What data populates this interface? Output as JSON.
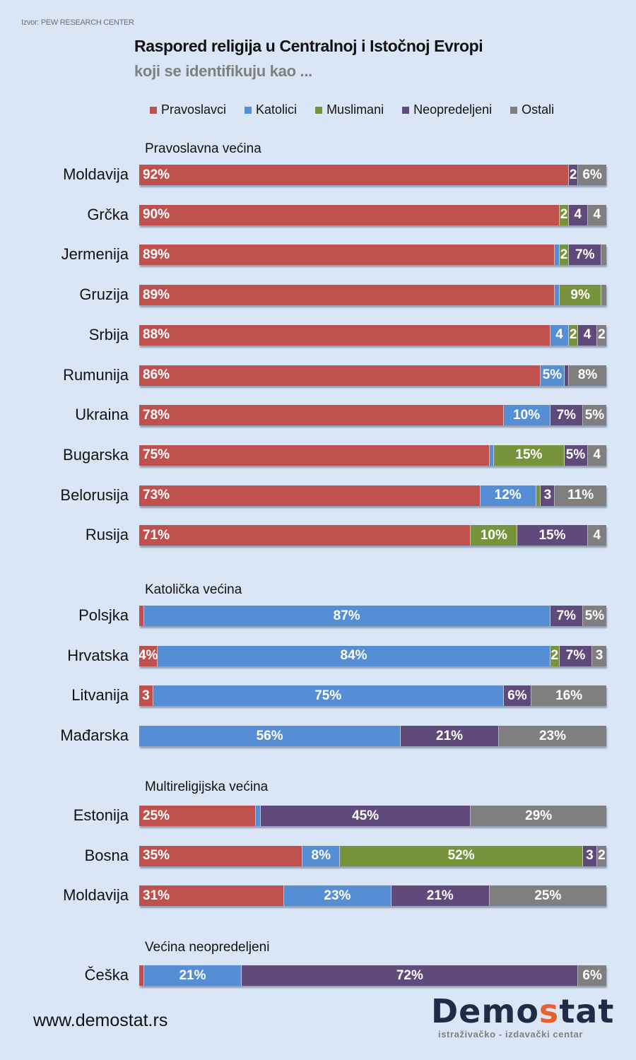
{
  "source": "Izvor: PEW RESEARCH CENTER",
  "footer": {
    "url": "www.demostat.rs",
    "logo_part1": "Demo",
    "logo_accent": "s",
    "logo_part2": "tat",
    "logo_tagline": "istraživačko - izdavački  centar"
  },
  "colors": {
    "Pravoslavci": "#c0504d",
    "Katolici": "#558ed5",
    "Muslimani": "#77933c",
    "Neopredeljeni": "#604a7b",
    "Ostali": "#7f7f7f"
  },
  "chart_data": {
    "type": "bar",
    "orientation": "horizontal",
    "stacked": true,
    "title": "Raspored religija u Centralnoj i Istočnoj Evropi",
    "subtitle": "koji se identifikuju kao ...",
    "xlim": [
      0,
      100
    ],
    "unit": "%",
    "legend": {
      "placement": "top-right",
      "entries": [
        "Pravoslavci",
        "Katolici",
        "Muslimani",
        "Neopredeljeni",
        "Ostali"
      ]
    },
    "series_names": [
      "Pravoslavci",
      "Katolici",
      "Muslimani",
      "Neopredeljeni",
      "Ostali"
    ],
    "groups": [
      {
        "label": "Pravoslavna većina",
        "rows": [
          {
            "country": "Moldavija",
            "values": [
              92,
              0,
              0,
              2,
              6
            ],
            "labels": [
              "92%",
              "",
              "",
              "2",
              "6%"
            ]
          },
          {
            "country": "Grčka",
            "values": [
              90,
              0,
              2,
              4,
              4
            ],
            "labels": [
              "90%",
              "",
              "2",
              "4",
              "4"
            ]
          },
          {
            "country": "Jermenija",
            "values": [
              89,
              1,
              2,
              7,
              1
            ],
            "labels": [
              "89%",
              "",
              "2",
              "7%",
              ""
            ]
          },
          {
            "country": "Gruzija",
            "values": [
              89,
              1,
              9,
              0,
              1
            ],
            "labels": [
              "89%",
              "",
              "9%",
              "",
              ""
            ]
          },
          {
            "country": "Srbija",
            "values": [
              88,
              4,
              2,
              4,
              2
            ],
            "labels": [
              "88%",
              "4",
              "2",
              "4",
              "2"
            ]
          },
          {
            "country": "Rumunija",
            "values": [
              86,
              5,
              0,
              1,
              8
            ],
            "labels": [
              "86%",
              "5%",
              "",
              "",
              "8%"
            ]
          },
          {
            "country": "Ukraina",
            "values": [
              78,
              10,
              0,
              7,
              5
            ],
            "labels": [
              "78%",
              "10%",
              "",
              "7%",
              "5%"
            ]
          },
          {
            "country": "Bugarska",
            "values": [
              75,
              1,
              15,
              5,
              4
            ],
            "labels": [
              "75%",
              "",
              "15%",
              "5%",
              "4"
            ]
          },
          {
            "country": "Belorusija",
            "values": [
              73,
              12,
              1,
              3,
              11
            ],
            "labels": [
              "73%",
              "12%",
              "",
              "3",
              "11%"
            ]
          },
          {
            "country": "Rusija",
            "values": [
              71,
              0,
              10,
              15,
              4
            ],
            "labels": [
              "71%",
              "",
              "10%",
              "15%",
              "4"
            ]
          }
        ]
      },
      {
        "label": "Katolička većina",
        "rows": [
          {
            "country": "Polsjka",
            "values": [
              1,
              87,
              0,
              7,
              5
            ],
            "labels": [
              "",
              "87%",
              "",
              "7%",
              "5%"
            ]
          },
          {
            "country": "Hrvatska",
            "values": [
              4,
              84,
              2,
              7,
              3
            ],
            "labels": [
              "4%",
              "84%",
              "2",
              "7%",
              "3"
            ]
          },
          {
            "country": "Litvanija",
            "values": [
              3,
              75,
              0,
              6,
              16
            ],
            "labels": [
              "3",
              "75%",
              "",
              "6%",
              "16%"
            ]
          },
          {
            "country": "Mađarska",
            "values": [
              0,
              56,
              0,
              21,
              23
            ],
            "labels": [
              "",
              "56%",
              "",
              "21%",
              "23%"
            ]
          }
        ]
      },
      {
        "label": "Multireligijska većina",
        "rows": [
          {
            "country": "Estonija",
            "values": [
              25,
              1,
              0,
              45,
              29
            ],
            "labels": [
              "25%",
              "",
              "",
              "45%",
              "29%"
            ]
          },
          {
            "country": "Bosna",
            "values": [
              35,
              8,
              52,
              3,
              2
            ],
            "labels": [
              "35%",
              "8%",
              "52%",
              "3",
              "2"
            ]
          },
          {
            "country": "Moldavija",
            "values": [
              31,
              23,
              0,
              21,
              25
            ],
            "labels": [
              "31%",
              "23%",
              "",
              "21%",
              "25%"
            ]
          }
        ]
      },
      {
        "label": "Većina neopredeljeni",
        "rows": [
          {
            "country": "Češka",
            "values": [
              1,
              21,
              0,
              72,
              6
            ],
            "labels": [
              "",
              "21%",
              "",
              "72%",
              "6%"
            ]
          }
        ]
      }
    ]
  }
}
